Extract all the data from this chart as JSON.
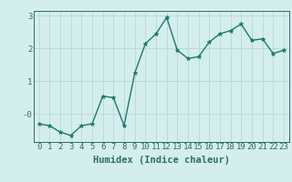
{
  "xlabel": "Humidex (Indice chaleur)",
  "x": [
    0,
    1,
    2,
    3,
    4,
    5,
    6,
    7,
    8,
    9,
    10,
    11,
    12,
    13,
    14,
    15,
    16,
    17,
    18,
    19,
    20,
    21,
    22,
    23
  ],
  "y": [
    -0.3,
    -0.35,
    -0.55,
    -0.65,
    -0.35,
    -0.3,
    0.55,
    0.5,
    -0.35,
    1.25,
    2.15,
    2.45,
    2.95,
    1.95,
    1.7,
    1.75,
    2.2,
    2.45,
    2.55,
    2.75,
    2.25,
    2.3,
    1.85,
    1.95
  ],
  "line_color": "#1a7a6e",
  "marker": "*",
  "marker_color": "#1a7a6e",
  "bg_color": "#d4eeed",
  "grid_color": "#b8d8d5",
  "axis_color": "#2d6e68",
  "ylim": [
    -0.85,
    3.15
  ],
  "xlim": [
    -0.5,
    23.5
  ],
  "yticks": [
    0,
    1,
    2,
    3
  ],
  "ytick_labels": [
    "-0",
    "1",
    "2",
    "3"
  ],
  "xticks": [
    0,
    1,
    2,
    3,
    4,
    5,
    6,
    7,
    8,
    9,
    10,
    11,
    12,
    13,
    14,
    15,
    16,
    17,
    18,
    19,
    20,
    21,
    22,
    23
  ],
  "xlabel_fontsize": 7.5,
  "tick_fontsize": 6.5,
  "line_width": 1.0,
  "marker_size": 3.5
}
